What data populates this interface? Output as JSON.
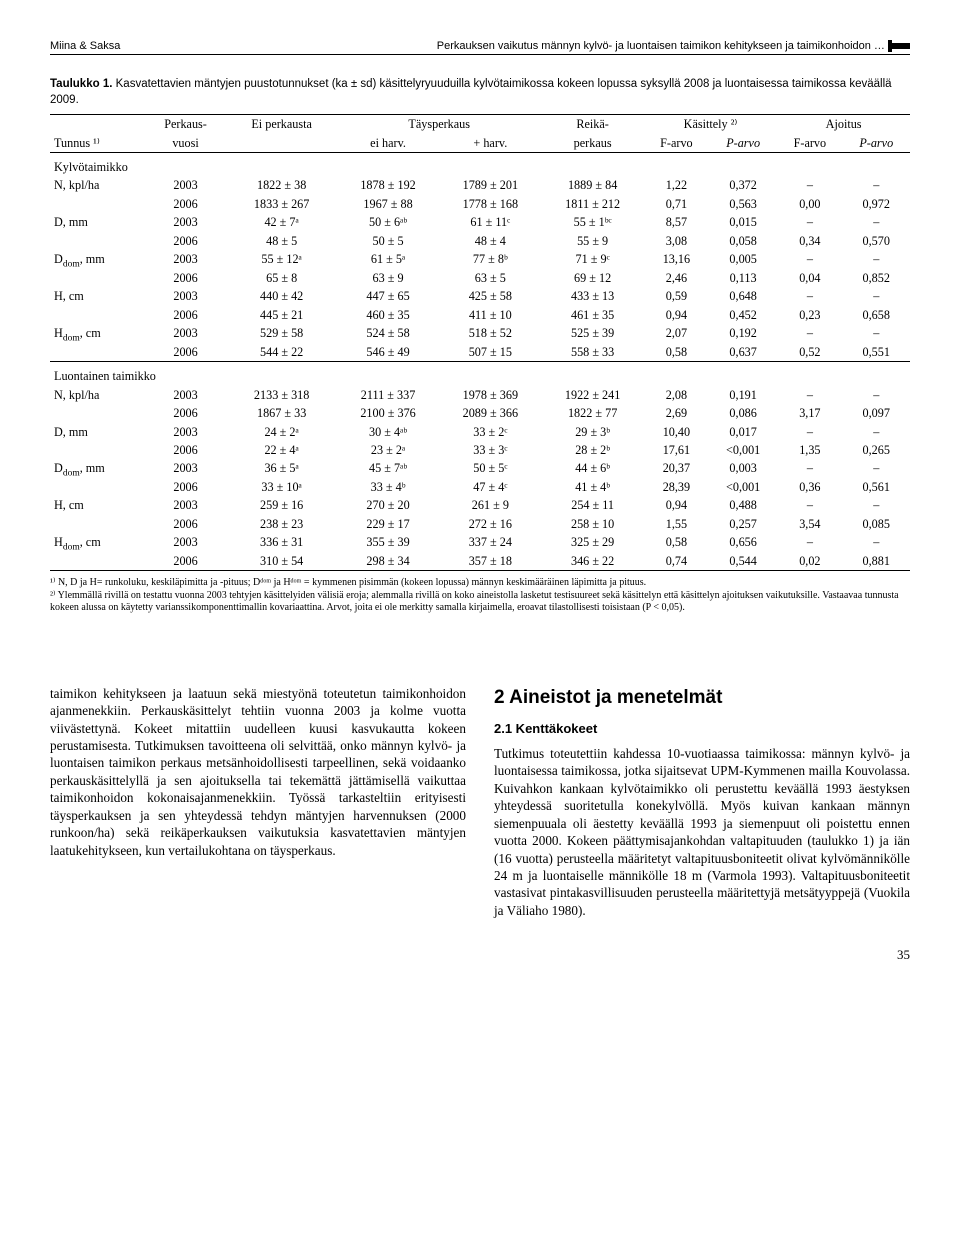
{
  "running_head": {
    "left": "Miina & Saksa",
    "right": "Perkauksen vaikutus männyn kylvö- ja luontaisen taimikon kehitykseen ja taimikonhoidon …"
  },
  "caption": {
    "label": "Taulukko 1.",
    "text": "Kasvatettavien mäntyjen puustotunnukset (ka ± sd) käsittelyryuuduilla kylvötaimikossa kokeen lopussa syksyllä 2008 ja luontaisessa taimikossa keväällä 2009."
  },
  "table": {
    "head": {
      "r1": [
        "",
        "Perkaus-",
        "Ei perkausta",
        "Täysperkaus",
        "",
        "Reikä-",
        "Käsittely ²⁾",
        "",
        "Ajoitus",
        ""
      ],
      "r2": [
        "Tunnus ¹⁾",
        "vuosi",
        "",
        "ei harv.",
        "+ harv.",
        "perkaus",
        "F-arvo",
        "P-arvo",
        "F-arvo",
        "P-arvo"
      ]
    },
    "section1": "Kylvötaimikko",
    "rows1": [
      {
        "tunnus": "N, kpl/ha",
        "vuosi": "2003",
        "eip": "1822 ± 38",
        "eih": "1878 ± 192",
        "ph": "1789 ± 201",
        "reika": "1889 ± 84",
        "f1": "1,22",
        "p1": "0,372",
        "f2": "–",
        "p2": "–"
      },
      {
        "tunnus": "",
        "vuosi": "2006",
        "eip": "1833 ± 267",
        "eih": "1967 ± 88",
        "ph": "1778 ± 168",
        "reika": "1811 ± 212",
        "f1": "0,71",
        "p1": "0,563",
        "f2": "0,00",
        "p2": "0,972"
      },
      {
        "tunnus": "D, mm",
        "vuosi": "2003",
        "eip": "42 ± 7ᵃ",
        "eih": "50 ± 6ᵃᵇ",
        "ph": "61 ± 11ᶜ",
        "reika": "55 ± 1ᵇᶜ",
        "f1": "8,57",
        "p1": "0,015",
        "f2": "–",
        "p2": "–"
      },
      {
        "tunnus": "",
        "vuosi": "2006",
        "eip": "48 ± 5",
        "eih": "50 ± 5",
        "ph": "48 ± 4",
        "reika": "55 ± 9",
        "f1": "3,08",
        "p1": "0,058",
        "f2": "0,34",
        "p2": "0,570"
      },
      {
        "tunnus": "D_dom, mm",
        "vuosi": "2003",
        "eip": "55 ± 12ᵃ",
        "eih": "61 ± 5ᵃ",
        "ph": "77 ± 8ᵇ",
        "reika": "71 ± 9ᶜ",
        "f1": "13,16",
        "p1": "0,005",
        "f2": "–",
        "p2": "–"
      },
      {
        "tunnus": "",
        "vuosi": "2006",
        "eip": "65 ± 8",
        "eih": "63 ± 9",
        "ph": "63 ± 5",
        "reika": "69 ± 12",
        "f1": "2,46",
        "p1": "0,113",
        "f2": "0,04",
        "p2": "0,852"
      },
      {
        "tunnus": "H, cm",
        "vuosi": "2003",
        "eip": "440 ± 42",
        "eih": "447 ± 65",
        "ph": "425 ± 58",
        "reika": "433 ± 13",
        "f1": "0,59",
        "p1": "0,648",
        "f2": "–",
        "p2": "–"
      },
      {
        "tunnus": "",
        "vuosi": "2006",
        "eip": "445 ± 21",
        "eih": "460 ± 35",
        "ph": "411 ± 10",
        "reika": "461 ± 35",
        "f1": "0,94",
        "p1": "0,452",
        "f2": "0,23",
        "p2": "0,658"
      },
      {
        "tunnus": "H_dom, cm",
        "vuosi": "2003",
        "eip": "529 ± 58",
        "eih": "524 ± 58",
        "ph": "518 ± 52",
        "reika": "525 ± 39",
        "f1": "2,07",
        "p1": "0,192",
        "f2": "–",
        "p2": "–"
      },
      {
        "tunnus": "",
        "vuosi": "2006",
        "eip": "544 ± 22",
        "eih": "546 ± 49",
        "ph": "507 ± 15",
        "reika": "558 ± 33",
        "f1": "0,58",
        "p1": "0,637",
        "f2": "0,52",
        "p2": "0,551"
      }
    ],
    "section2": "Luontainen taimikko",
    "rows2": [
      {
        "tunnus": "N, kpl/ha",
        "vuosi": "2003",
        "eip": "2133 ± 318",
        "eih": "2111 ± 337",
        "ph": "1978 ± 369",
        "reika": "1922 ± 241",
        "f1": "2,08",
        "p1": "0,191",
        "f2": "–",
        "p2": "–"
      },
      {
        "tunnus": "",
        "vuosi": "2006",
        "eip": "1867 ± 33",
        "eih": "2100 ± 376",
        "ph": "2089 ± 366",
        "reika": "1822 ± 77",
        "f1": "2,69",
        "p1": "0,086",
        "f2": "3,17",
        "p2": "0,097"
      },
      {
        "tunnus": "D, mm",
        "vuosi": "2003",
        "eip": "24 ± 2ᵃ",
        "eih": "30 ± 4ᵃᵇ",
        "ph": "33 ± 2ᶜ",
        "reika": "29 ± 3ᵇ",
        "f1": "10,40",
        "p1": "0,017",
        "f2": "–",
        "p2": "–"
      },
      {
        "tunnus": "",
        "vuosi": "2006",
        "eip": "22 ± 4ᵃ",
        "eih": "23 ± 2ᵃ",
        "ph": "33 ± 3ᶜ",
        "reika": "28 ± 2ᵇ",
        "f1": "17,61",
        "p1": "<0,001",
        "f2": "1,35",
        "p2": "0,265"
      },
      {
        "tunnus": "D_dom, mm",
        "vuosi": "2003",
        "eip": "36 ± 5ᵃ",
        "eih": "45 ± 7ᵃᵇ",
        "ph": "50 ± 5ᶜ",
        "reika": "44 ± 6ᵇ",
        "f1": "20,37",
        "p1": "0,003",
        "f2": "–",
        "p2": "–"
      },
      {
        "tunnus": "",
        "vuosi": "2006",
        "eip": "33 ± 10ᵃ",
        "eih": "33 ± 4ᵇ",
        "ph": "47 ± 4ᶜ",
        "reika": "41 ± 4ᵇ",
        "f1": "28,39",
        "p1": "<0,001",
        "f2": "0,36",
        "p2": "0,561"
      },
      {
        "tunnus": "H, cm",
        "vuosi": "2003",
        "eip": "259 ± 16",
        "eih": "270 ± 20",
        "ph": "261 ± 9",
        "reika": "254 ± 11",
        "f1": "0,94",
        "p1": "0,488",
        "f2": "–",
        "p2": "–"
      },
      {
        "tunnus": "",
        "vuosi": "2006",
        "eip": "238 ± 23",
        "eih": "229 ± 17",
        "ph": "272 ± 16",
        "reika": "258 ± 10",
        "f1": "1,55",
        "p1": "0,257",
        "f2": "3,54",
        "p2": "0,085"
      },
      {
        "tunnus": "H_dom, cm",
        "vuosi": "2003",
        "eip": "336 ± 31",
        "eih": "355 ± 39",
        "ph": "337 ± 24",
        "reika": "325 ± 29",
        "f1": "0,58",
        "p1": "0,656",
        "f2": "–",
        "p2": "–"
      },
      {
        "tunnus": "",
        "vuosi": "2006",
        "eip": "310 ± 54",
        "eih": "298 ± 34",
        "ph": "357 ± 18",
        "reika": "346 ± 22",
        "f1": "0,74",
        "p1": "0,544",
        "f2": "0,02",
        "p2": "0,881"
      }
    ]
  },
  "footnotes": {
    "n1": "¹⁾ N, D ja H= runkoluku, keskiläpimitta ja -pituus; Dᵈᵒᵐ ja Hᵈᵒᵐ = kymmenen pisimmän (kokeen lopussa) männyn keskimääräinen läpimitta ja pituus.",
    "n2": "²⁾ Ylemmällä rivillä on testattu vuonna 2003 tehtyjen käsittelyiden välisiä eroja; alemmalla rivillä on koko aineistolla lasketut testisuureet sekä käsittelyn että käsittelyn ajoituksen vaikutuksille. Vastaavaa tunnusta kokeen alussa on käytetty varianssikomponenttimallin kovariaattina. Arvot, joita ei ole merkitty samalla kirjaimella, eroavat tilastollisesti toisistaan (P < 0,05)."
  },
  "body": {
    "left": "taimikon kehitykseen ja laatuun sekä miestyönä toteutetun taimikonhoidon ajanmenekkiin. Perkauskäsittelyt tehtiin vuonna 2003 ja kolme vuotta viivästettynä. Kokeet mitattiin uudelleen kuusi kasvukautta kokeen perustamisesta. Tutkimuksen tavoitteena oli selvittää, onko männyn kylvö- ja luontaisen taimikon perkaus metsänhoidollisesti tarpeellinen, sekä voidaanko perkauskäsittelyllä ja sen ajoituksella tai tekemättä jättämisellä vaikuttaa taimikonhoidon kokonaisajanmenekkiin. Työssä tarkasteltiin erityisesti täysperkauksen ja sen yhteydessä tehdyn mäntyjen harvennuksen (2000 runkoon/ha) sekä reikäperkauksen vaikutuksia kasvatettavien mäntyjen laatukehitykseen, kun vertailukohtana on täysperkaus.",
    "h2": "2 Aineistot ja menetelmät",
    "h3": "2.1 Kenttäkokeet",
    "right": "Tutkimus toteutettiin kahdessa 10-vuotiaassa taimikossa: männyn kylvö- ja luontaisessa taimikossa, jotka sijaitsevat UPM-Kymmenen mailla Kouvolassa. Kuivahkon kankaan kylvötaimikko oli perustettu keväällä 1993 äestyksen yhteydessä suoritetulla konekylvöllä. Myös kuivan kankaan männyn siemenpuuala oli äestetty keväällä 1993 ja siemenpuut oli poistettu ennen vuotta 2000. Kokeen päättymisajankohdan valtapituuden (taulukko 1) ja iän (16 vuotta) perusteella määritetyt valtapituusboniteetit olivat kylvömännikölle 24 m ja luontaiselle männikölle 18 m (Varmola 1993). Valtapituusboniteetit vastasivat pintakasvillisuuden perusteella määritettyjä metsätyyppejä (Vuokila ja Väliaho 1980)."
  },
  "pagenum": "35"
}
